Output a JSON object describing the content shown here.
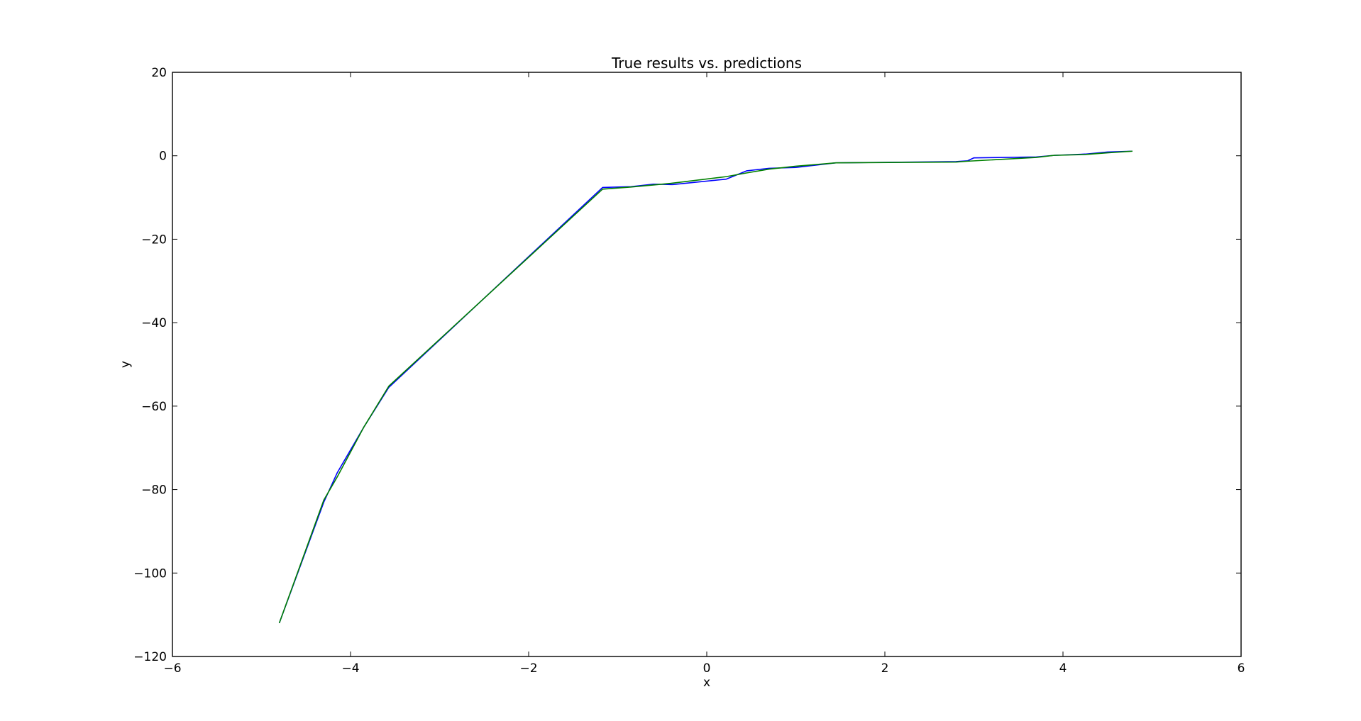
{
  "chart_data": {
    "type": "line",
    "title": "True results vs. predictions",
    "xlabel": "x",
    "ylabel": "y",
    "xlim": [
      -6,
      6
    ],
    "ylim": [
      -120,
      20
    ],
    "xticks": [
      -6,
      -4,
      -2,
      0,
      2,
      4,
      6
    ],
    "yticks": [
      20,
      0,
      -20,
      -40,
      -60,
      -80,
      -100,
      -120
    ],
    "xtick_labels": [
      "−6",
      "−4",
      "−2",
      "0",
      "2",
      "4",
      "6"
    ],
    "ytick_labels": [
      "20",
      "0",
      "−20",
      "−40",
      "−60",
      "−80",
      "−100",
      "−120"
    ],
    "grid": false,
    "series": [
      {
        "color": "#0000ff",
        "x": [
          -4.8,
          -4.3,
          -4.15,
          -3.85,
          -3.57,
          -1.17,
          -0.85,
          -0.6,
          -0.4,
          -0.38,
          0.22,
          0.45,
          0.7,
          1.0,
          1.45,
          2.8,
          2.93,
          3.0,
          3.7,
          3.9,
          4.25,
          4.5,
          4.78
        ],
        "y": [
          -112.0,
          -83.0,
          -76.0,
          -65.0,
          -55.5,
          -7.6,
          -7.4,
          -6.8,
          -6.9,
          -6.9,
          -5.6,
          -3.6,
          -3.0,
          -2.8,
          -1.7,
          -1.4,
          -1.2,
          -0.5,
          -0.3,
          0.1,
          0.4,
          0.9,
          1.1
        ]
      },
      {
        "color": "#008000",
        "x": [
          -4.8,
          -4.3,
          -4.15,
          -3.85,
          -3.57,
          -1.17,
          -0.85,
          -0.6,
          -0.4,
          0.22,
          0.45,
          0.7,
          1.0,
          1.45,
          2.8,
          2.93,
          3.7,
          3.9,
          4.25,
          4.5,
          4.78
        ],
        "y": [
          -112.0,
          -82.5,
          -77.0,
          -65.0,
          -55.2,
          -8.0,
          -7.5,
          -7.0,
          -6.6,
          -5.0,
          -4.1,
          -3.2,
          -2.5,
          -1.7,
          -1.5,
          -1.3,
          -0.4,
          0.1,
          0.3,
          0.7,
          1.1
        ]
      }
    ]
  }
}
